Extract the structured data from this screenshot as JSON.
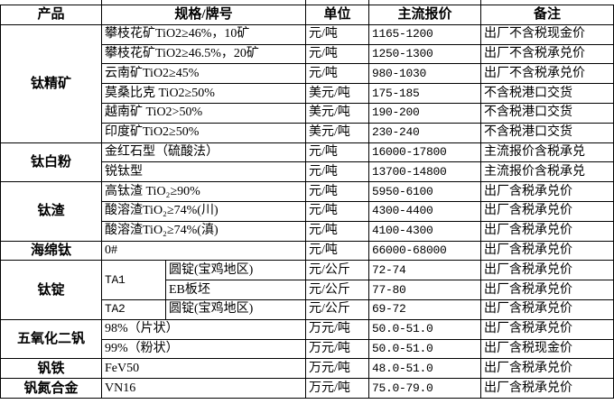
{
  "headers": [
    "产品",
    "规格/牌号",
    "单位",
    "主流报价",
    "备注"
  ],
  "groups": [
    {
      "product": "钛精矿",
      "rows": [
        {
          "spec": "攀枝花矿TiO2≥46%，10矿",
          "unit": "元/吨",
          "price": "1165-1200",
          "note": "出厂不含税现金价"
        },
        {
          "spec": "攀枝花矿TiO2≥46.5%，20矿",
          "unit": "元/吨",
          "price": "1250-1300",
          "note": "出厂不含税承兑价"
        },
        {
          "spec": "云南矿TiO2≥45%",
          "unit": "元/吨",
          "price": "980-1030",
          "note": "出厂不含税承兑价"
        },
        {
          "spec": "莫桑比克 TiO2≥50%",
          "unit": "美元/吨",
          "price": "175-185",
          "note": "不含税港口交货"
        },
        {
          "spec": "越南矿 TiO2>50%",
          "unit": "美元/吨",
          "price": "190-200",
          "note": "不含税港口交货"
        },
        {
          "spec": "印度矿TiO2≥50%",
          "unit": "美元/吨",
          "price": "230-240",
          "note": "不含税港口交货"
        }
      ]
    },
    {
      "product": "钛白粉",
      "rows": [
        {
          "spec": "金红石型（硫酸法）",
          "unit": "元/吨",
          "price": "16000-17800",
          "note": "主流报价含税承兑"
        },
        {
          "spec": "锐钛型",
          "unit": "元/吨",
          "price": "13700-14800",
          "note": "主流报价含税承兑"
        }
      ]
    },
    {
      "product": "钛渣",
      "rows": [
        {
          "spec": "高钛渣 TiO₂≥90%",
          "unit": "元/吨",
          "price": "5950-6100",
          "note": "出厂含税承兑价"
        },
        {
          "spec": "酸溶渣TiO₂≥74%(川)",
          "unit": "元/吨",
          "price": "4300-4400",
          "note": "出厂含税承兑价"
        },
        {
          "spec": "酸溶渣TiO₂≥74%(滇)",
          "unit": "元/吨",
          "price": "4100-4300",
          "note": "出厂含税承兑价"
        }
      ]
    },
    {
      "product": "海绵钛",
      "rows": [
        {
          "spec": "0#",
          "unit": "元/吨",
          "price": "66000-68000",
          "note": "出厂含税承兑价"
        }
      ]
    },
    {
      "product": "钛锭",
      "rows": [
        {
          "grade": "TA1",
          "spec": "圆锭(宝鸡地区)",
          "unit": "元/公斤",
          "price": "72-74",
          "note": "出厂含税承兑价"
        },
        {
          "spec": "EB板坯",
          "unit": "元/公斤",
          "price": "77-80",
          "note": "出厂含税承兑价"
        },
        {
          "grade": "TA2",
          "spec": "圆锭(宝鸡地区)",
          "unit": "元/公斤",
          "price": "69-72",
          "note": "出厂含税承兑价"
        }
      ]
    },
    {
      "product": "五氧化二钒",
      "rows": [
        {
          "spec": "98%（片状）",
          "unit": "万元/吨",
          "price": "50.0-51.0",
          "note": "出厂含税承兑价"
        },
        {
          "spec": "99%（粉状）",
          "unit": "万元/吨",
          "price": "50.0-51.0",
          "note": "出厂含税现金价"
        }
      ]
    },
    {
      "product": "钒铁",
      "rows": [
        {
          "spec": "FeV50",
          "unit": "万元/吨",
          "price": "48.0-51.0",
          "note": "出厂含税承兑价"
        }
      ]
    },
    {
      "product": "钒氮合金",
      "rows": [
        {
          "spec": "VN16",
          "unit": "万元/吨",
          "price": "75.0-79.0",
          "note": "出厂含税承兑价"
        }
      ]
    }
  ]
}
